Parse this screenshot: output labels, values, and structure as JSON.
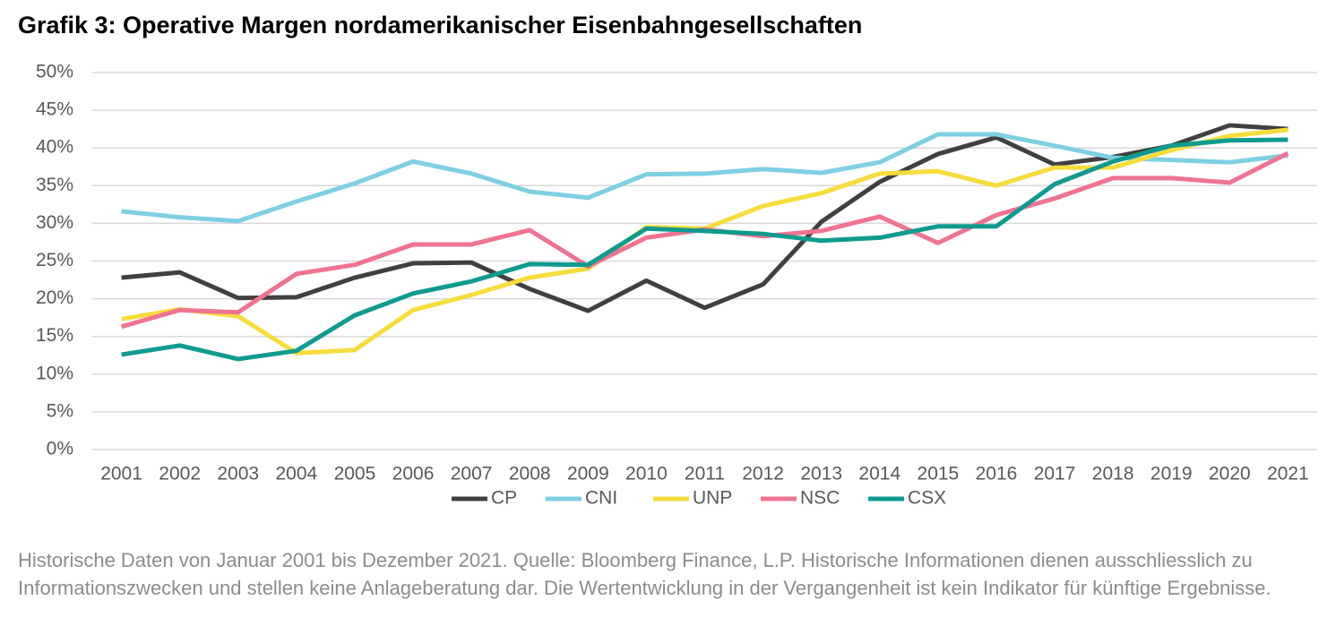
{
  "chart_data": {
    "type": "line",
    "title": "Grafik 3: Operative Margen nordamerikanischer Eisenbahngesellschaften",
    "categories": [
      "2001",
      "2002",
      "2003",
      "2004",
      "2005",
      "2006",
      "2007",
      "2008",
      "2009",
      "2010",
      "2011",
      "2012",
      "2013",
      "2014",
      "2015",
      "2016",
      "2017",
      "2018",
      "2019",
      "2020",
      "2021"
    ],
    "series": [
      {
        "name": "CP",
        "color": "#404040",
        "values": [
          22.8,
          23.5,
          20.1,
          20.2,
          22.8,
          24.7,
          24.8,
          21.3,
          18.4,
          22.4,
          18.8,
          21.9,
          30.2,
          35.5,
          39.2,
          41.4,
          37.8,
          38.8,
          40.3,
          43.0,
          42.5
        ]
      },
      {
        "name": "CNI",
        "color": "#7fcfe3",
        "values": [
          31.6,
          30.8,
          30.3,
          32.9,
          35.3,
          38.2,
          36.6,
          34.2,
          33.4,
          36.5,
          36.6,
          37.2,
          36.7,
          38.1,
          41.8,
          41.8,
          40.3,
          38.7,
          38.4,
          38.1,
          39.0
        ]
      },
      {
        "name": "UNP",
        "color": "#f7dc3c",
        "values": [
          17.3,
          18.6,
          17.7,
          12.8,
          13.2,
          18.5,
          20.5,
          22.8,
          24.0,
          29.5,
          29.3,
          32.3,
          34.0,
          36.6,
          36.9,
          35.0,
          37.4,
          37.4,
          39.7,
          41.6,
          42.4
        ]
      },
      {
        "name": "NSC",
        "color": "#f07391",
        "values": [
          16.3,
          18.5,
          18.2,
          23.3,
          24.5,
          27.2,
          27.2,
          29.1,
          24.3,
          28.1,
          29.2,
          28.3,
          29.0,
          30.9,
          27.4,
          31.1,
          33.3,
          36.0,
          36.0,
          35.4,
          39.3
        ]
      },
      {
        "name": "CSX",
        "color": "#0f9b8e",
        "values": [
          12.6,
          13.8,
          12.0,
          13.1,
          17.8,
          20.7,
          22.3,
          24.6,
          24.5,
          29.3,
          29.0,
          28.6,
          27.7,
          28.1,
          29.6,
          29.6,
          35.2,
          38.2,
          40.3,
          41.0,
          41.1
        ]
      }
    ],
    "ylim": [
      0,
      50
    ],
    "yticks": [
      {
        "value": 0,
        "label": "0%"
      },
      {
        "value": 5,
        "label": "5%"
      },
      {
        "value": 10,
        "label": "10%"
      },
      {
        "value": 15,
        "label": "15%"
      },
      {
        "value": 20,
        "label": "20%"
      },
      {
        "value": 25,
        "label": "25%"
      },
      {
        "value": 30,
        "label": "30%"
      },
      {
        "value": 35,
        "label": "35%"
      },
      {
        "value": 40,
        "label": "40%"
      },
      {
        "value": 45,
        "label": "45%"
      },
      {
        "value": 50,
        "label": "50%"
      }
    ],
    "grid": true,
    "legend": "bottom",
    "note": "Historische Daten von Januar 2001 bis Dezember 2021. Quelle: Bloomberg Finance, L.P. Historische Informationen dienen ausschliesslich zu Informationszwecken und stellen keine Anlageberatung dar. Die Wertentwicklung in der Vergangenheit ist kein Indikator für künftige Ergebnisse."
  }
}
